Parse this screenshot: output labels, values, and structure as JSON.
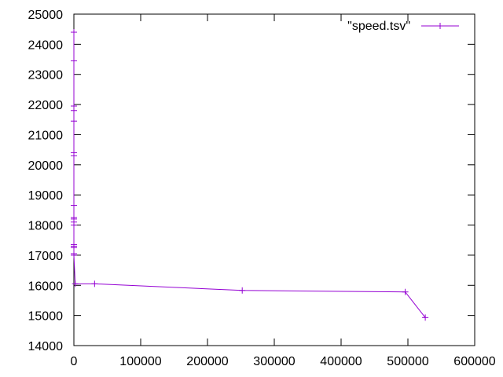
{
  "chart_data": {
    "type": "line",
    "title": "",
    "xlabel": "",
    "ylabel": "",
    "xlim": [
      0,
      600000
    ],
    "ylim": [
      14000,
      25000
    ],
    "xticks": [
      0,
      100000,
      200000,
      300000,
      400000,
      500000,
      600000
    ],
    "yticks": [
      14000,
      15000,
      16000,
      17000,
      18000,
      19000,
      20000,
      21000,
      22000,
      23000,
      24000,
      25000
    ],
    "grid": false,
    "legend_position": "top-right",
    "series": [
      {
        "name": "\"speed.tsv\"",
        "color": "#9400d3",
        "marker": "plus",
        "points": [
          [
            0,
            24400
          ],
          [
            0,
            23450
          ],
          [
            0,
            21950
          ],
          [
            0,
            21800
          ],
          [
            0,
            21450
          ],
          [
            0,
            20400
          ],
          [
            0,
            20300
          ],
          [
            0,
            18650
          ],
          [
            0,
            18250
          ],
          [
            0,
            18200
          ],
          [
            0,
            18100
          ],
          [
            0,
            18000
          ],
          [
            0,
            17350
          ],
          [
            0,
            17300
          ],
          [
            0,
            17250
          ],
          [
            0,
            17050
          ],
          [
            0,
            17000
          ],
          [
            2000,
            16050
          ],
          [
            31000,
            16050
          ],
          [
            252000,
            15830
          ],
          [
            496000,
            15780
          ],
          [
            526000,
            14930
          ]
        ]
      }
    ]
  }
}
